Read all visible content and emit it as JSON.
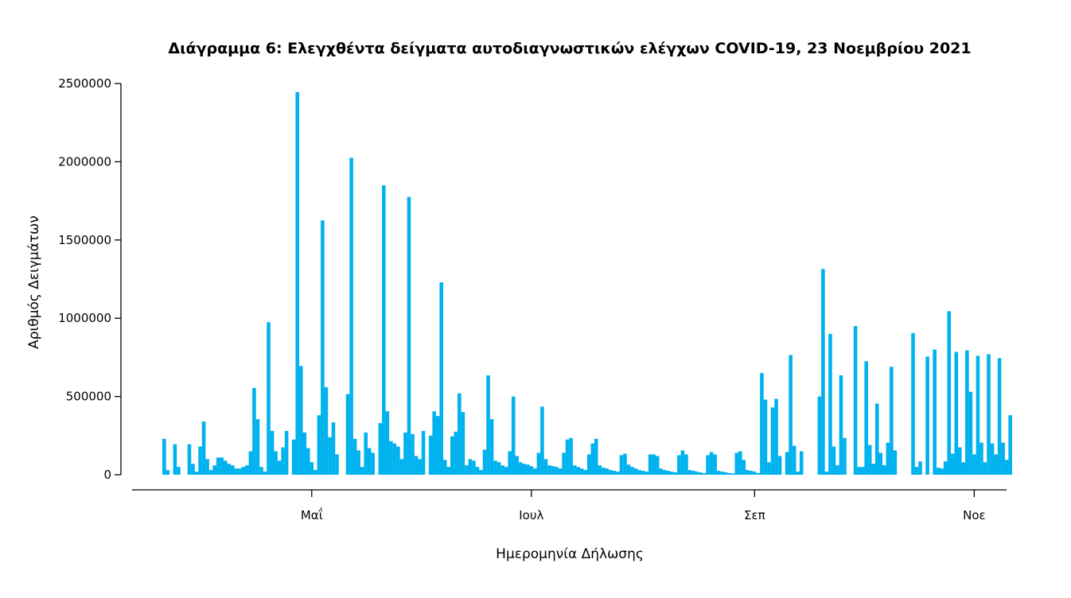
{
  "chart_data": {
    "type": "bar",
    "title": "Διάγραμμα 6: Ελεγχθέντα δείγματα αυτοδιαγνωστικών ελέγχων COVID-19, 23 Νοεμβρίου 2021",
    "xlabel": "Ημερομηνία Δήλωσης",
    "ylabel": "Αριθμός Δειγμάτων",
    "ylim": [
      0,
      2500000
    ],
    "y_ticks": [
      0,
      500000,
      1000000,
      1500000,
      2000000,
      2500000
    ],
    "y_tick_labels": [
      "0",
      "500000",
      "1000000",
      "1500000",
      "2000000",
      "2500000"
    ],
    "x_ticks": [
      {
        "label": "Μαΐ",
        "day": 57
      },
      {
        "label": "Ιουλ",
        "day": 118
      },
      {
        "label": "Σεπ",
        "day": 180
      },
      {
        "label": "Νοε",
        "day": 241
      }
    ],
    "first_day": 16,
    "last_day": 242,
    "bar_color": "#00B2EE",
    "values": [
      230000,
      30000,
      0,
      195000,
      50000,
      0,
      0,
      195000,
      70000,
      20000,
      180000,
      340000,
      100000,
      30000,
      60000,
      110000,
      110000,
      90000,
      70000,
      60000,
      40000,
      40000,
      50000,
      60000,
      150000,
      555000,
      355000,
      50000,
      20000,
      975000,
      280000,
      150000,
      90000,
      175000,
      280000,
      0,
      225000,
      2445000,
      695000,
      270000,
      170000,
      80000,
      30000,
      380000,
      1625000,
      560000,
      240000,
      335000,
      130000,
      0,
      0,
      515000,
      2025000,
      230000,
      155000,
      50000,
      270000,
      170000,
      140000,
      0,
      330000,
      1850000,
      405000,
      215000,
      200000,
      180000,
      100000,
      270000,
      1775000,
      260000,
      120000,
      100000,
      280000,
      0,
      250000,
      405000,
      375000,
      1230000,
      95000,
      50000,
      245000,
      275000,
      520000,
      400000,
      60000,
      100000,
      90000,
      50000,
      30000,
      160000,
      635000,
      355000,
      90000,
      80000,
      60000,
      50000,
      150000,
      500000,
      120000,
      80000,
      70000,
      65000,
      55000,
      40000,
      140000,
      435000,
      100000,
      60000,
      55000,
      50000,
      40000,
      140000,
      225000,
      235000,
      60000,
      50000,
      40000,
      30000,
      130000,
      200000,
      230000,
      60000,
      45000,
      40000,
      30000,
      25000,
      20000,
      125000,
      135000,
      65000,
      50000,
      40000,
      30000,
      25000,
      20000,
      130000,
      130000,
      120000,
      40000,
      30000,
      25000,
      20000,
      15000,
      125000,
      155000,
      130000,
      30000,
      25000,
      20000,
      15000,
      10000,
      125000,
      145000,
      130000,
      25000,
      20000,
      15000,
      10000,
      8000,
      140000,
      150000,
      95000,
      30000,
      25000,
      20000,
      10000,
      650000,
      480000,
      80000,
      430000,
      485000,
      120000,
      0,
      145000,
      765000,
      185000,
      20000,
      150000,
      0,
      0,
      0,
      0,
      500000,
      1315000,
      20000,
      900000,
      180000,
      60000,
      635000,
      235000,
      0,
      0,
      950000,
      50000,
      50000,
      725000,
      190000,
      70000,
      455000,
      140000,
      60000,
      205000,
      690000,
      155000,
      0,
      0,
      0,
      0,
      905000,
      50000,
      85000,
      0,
      755000,
      0,
      800000,
      45000,
      40000,
      85000,
      1045000,
      135000,
      785000,
      175000,
      80000,
      795000,
      530000,
      130000,
      760000,
      205000,
      80000,
      770000,
      200000,
      130000,
      745000,
      205000,
      95000,
      380000
    ]
  }
}
